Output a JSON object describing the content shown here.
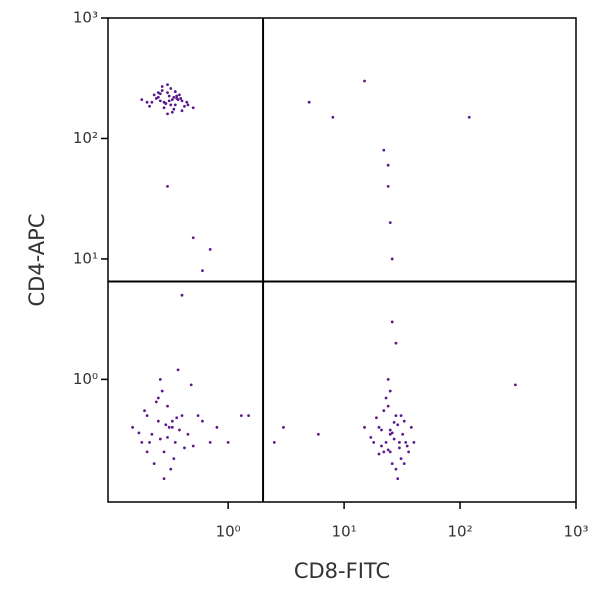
{
  "chart_data": {
    "type": "scatter",
    "x_label": "CD8-FITC",
    "y_label": "CD4-APC",
    "log_x": true,
    "log_y": true,
    "xlim": [
      0.092,
      1000
    ],
    "ylim": [
      0.096,
      1000
    ],
    "xticks": [
      {
        "value": 1,
        "label": "10⁰"
      },
      {
        "value": 10,
        "label": "10¹"
      },
      {
        "value": 100,
        "label": "10²"
      },
      {
        "value": 1000,
        "label": "10³"
      }
    ],
    "yticks": [
      {
        "value": 1,
        "label": "10⁰"
      },
      {
        "value": 10,
        "label": "10¹"
      },
      {
        "value": 100,
        "label": "10²"
      },
      {
        "value": 1000,
        "label": "10³"
      }
    ],
    "gates": {
      "x": 2,
      "y": 6.5
    },
    "color": "#5a1a8e",
    "x": [
      0.22,
      0.25,
      0.28,
      0.3,
      0.33,
      0.35,
      0.38,
      0.4,
      0.27,
      0.31,
      0.24,
      0.29,
      0.36,
      0.42,
      0.2,
      0.26,
      0.32,
      0.34,
      0.37,
      0.45,
      0.23,
      0.28,
      0.3,
      0.39,
      0.33,
      0.21,
      0.35,
      0.29,
      0.26,
      0.31,
      0.5,
      0.18,
      0.44,
      0.27,
      0.32,
      0.36,
      0.25,
      0.3,
      0.34,
      0.4,
      0.15,
      0.18,
      0.2,
      0.22,
      0.25,
      0.28,
      0.3,
      0.33,
      0.35,
      0.4,
      0.45,
      0.5,
      0.6,
      0.7,
      0.27,
      0.23,
      0.32,
      0.38,
      0.19,
      0.26,
      0.29,
      0.34,
      0.21,
      0.24,
      0.36,
      0.42,
      0.3,
      0.28,
      0.55,
      0.17,
      0.31,
      0.25,
      0.37,
      0.8,
      1.0,
      1.3,
      0.2,
      0.33,
      0.26,
      0.48,
      18,
      20,
      22,
      25,
      28,
      30,
      33,
      35,
      24,
      26,
      21,
      27,
      29,
      31,
      19,
      23,
      32,
      36,
      38,
      17,
      25,
      28,
      22,
      30,
      26,
      24,
      34,
      20,
      27,
      29,
      23,
      31,
      21,
      25,
      28,
      40,
      15,
      33,
      26,
      24,
      5,
      8,
      15,
      22,
      24,
      25,
      26,
      0.3,
      0.5,
      0.7,
      120,
      300,
      1.5,
      3,
      6,
      0.4,
      0.6,
      24,
      2.5,
      25
    ],
    "y": [
      200,
      220,
      180,
      240,
      210,
      190,
      230,
      170,
      250,
      205,
      215,
      195,
      225,
      185,
      200,
      235,
      260,
      175,
      210,
      190,
      230,
      200,
      280,
      215,
      165,
      185,
      245,
      195,
      205,
      225,
      180,
      210,
      200,
      270,
      190,
      215,
      240,
      160,
      220,
      205,
      0.4,
      0.3,
      0.5,
      0.35,
      0.45,
      0.25,
      0.6,
      0.4,
      0.3,
      0.5,
      0.35,
      0.28,
      0.45,
      0.3,
      0.8,
      0.2,
      0.18,
      0.38,
      0.55,
      1.0,
      0.42,
      0.22,
      0.3,
      0.65,
      0.48,
      0.27,
      0.33,
      0.15,
      0.5,
      0.36,
      0.4,
      0.7,
      1.2,
      0.4,
      0.3,
      0.5,
      0.25,
      0.45,
      0.32,
      0.9,
      0.3,
      0.4,
      0.25,
      0.35,
      0.5,
      0.3,
      0.45,
      0.28,
      0.6,
      0.2,
      0.38,
      0.32,
      0.42,
      0.22,
      0.48,
      0.3,
      0.35,
      0.25,
      0.4,
      0.33,
      0.8,
      0.18,
      0.55,
      0.27,
      0.36,
      1.0,
      0.3,
      0.24,
      0.44,
      0.15,
      0.7,
      0.5,
      0.28,
      0.38,
      2.0,
      0.3,
      0.4,
      0.2,
      3.0,
      0.26,
      200,
      150,
      300,
      80,
      40,
      20,
      10,
      40,
      15,
      12,
      150,
      0.9,
      0.5,
      0.4,
      0.35,
      5,
      8,
      60,
      0.3,
      0.25
    ]
  }
}
